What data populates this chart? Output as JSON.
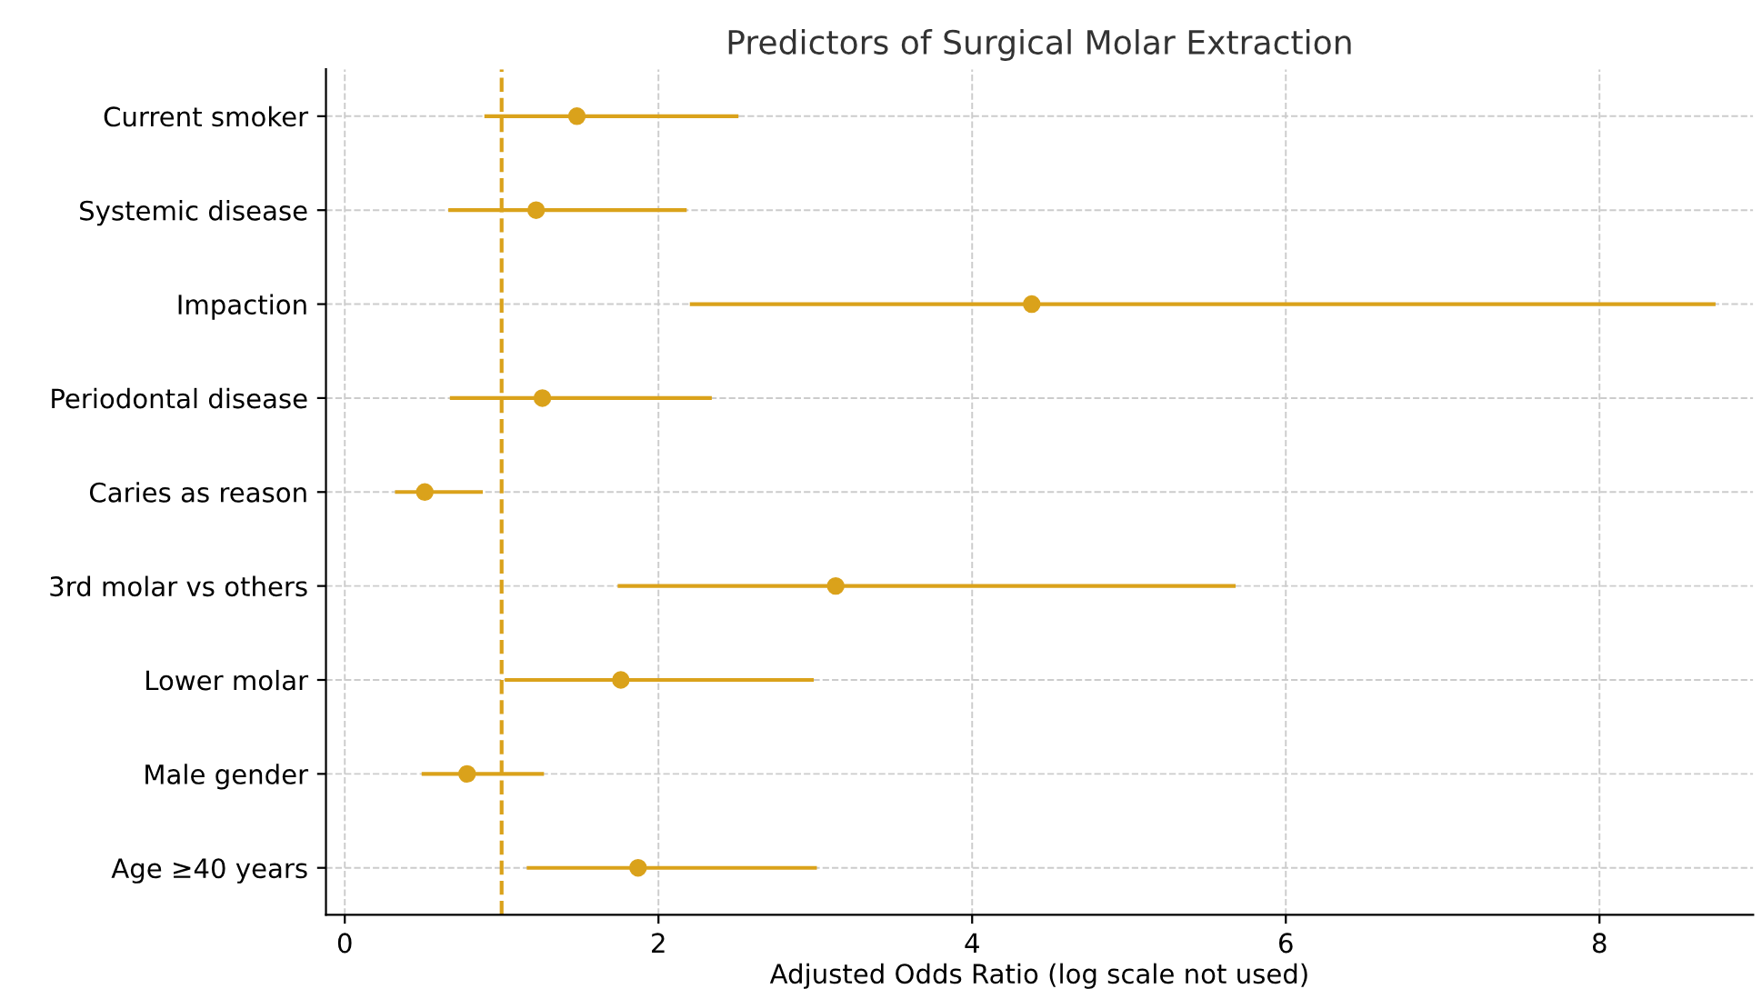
{
  "chart_data": {
    "type": "scatter",
    "title": "Predictors of Surgical Molar Extraction",
    "xlabel": "Adjusted Odds Ratio (log scale not used)",
    "orientation": "horizontal",
    "categories": [
      "Current smoker",
      "Systemic disease",
      "Impaction",
      "Periodontal disease",
      "Caries as reason",
      "3rd molar vs others",
      "Lower molar",
      "Male gender",
      "Age ≥40 years"
    ],
    "values": [
      1.48,
      1.22,
      4.38,
      1.26,
      0.51,
      3.13,
      1.76,
      0.78,
      1.87
    ],
    "errors": [
      [
        0.89,
        2.51
      ],
      [
        0.66,
        2.18
      ],
      [
        2.2,
        8.74
      ],
      [
        0.67,
        2.34
      ],
      [
        0.32,
        0.88
      ],
      [
        1.74,
        5.68
      ],
      [
        1.02,
        2.99
      ],
      [
        0.49,
        1.27
      ],
      [
        1.16,
        3.01
      ]
    ],
    "color": "#daa21b",
    "marker": "circle",
    "xlim": [
      -0.12,
      8.98
    ],
    "xticks": [
      0,
      2,
      4,
      6,
      8
    ],
    "grid": true,
    "ref_lines": [
      {
        "axis": "x",
        "value": 1,
        "label": null,
        "color": "#daa21b",
        "line_style": "dashed"
      }
    ]
  }
}
